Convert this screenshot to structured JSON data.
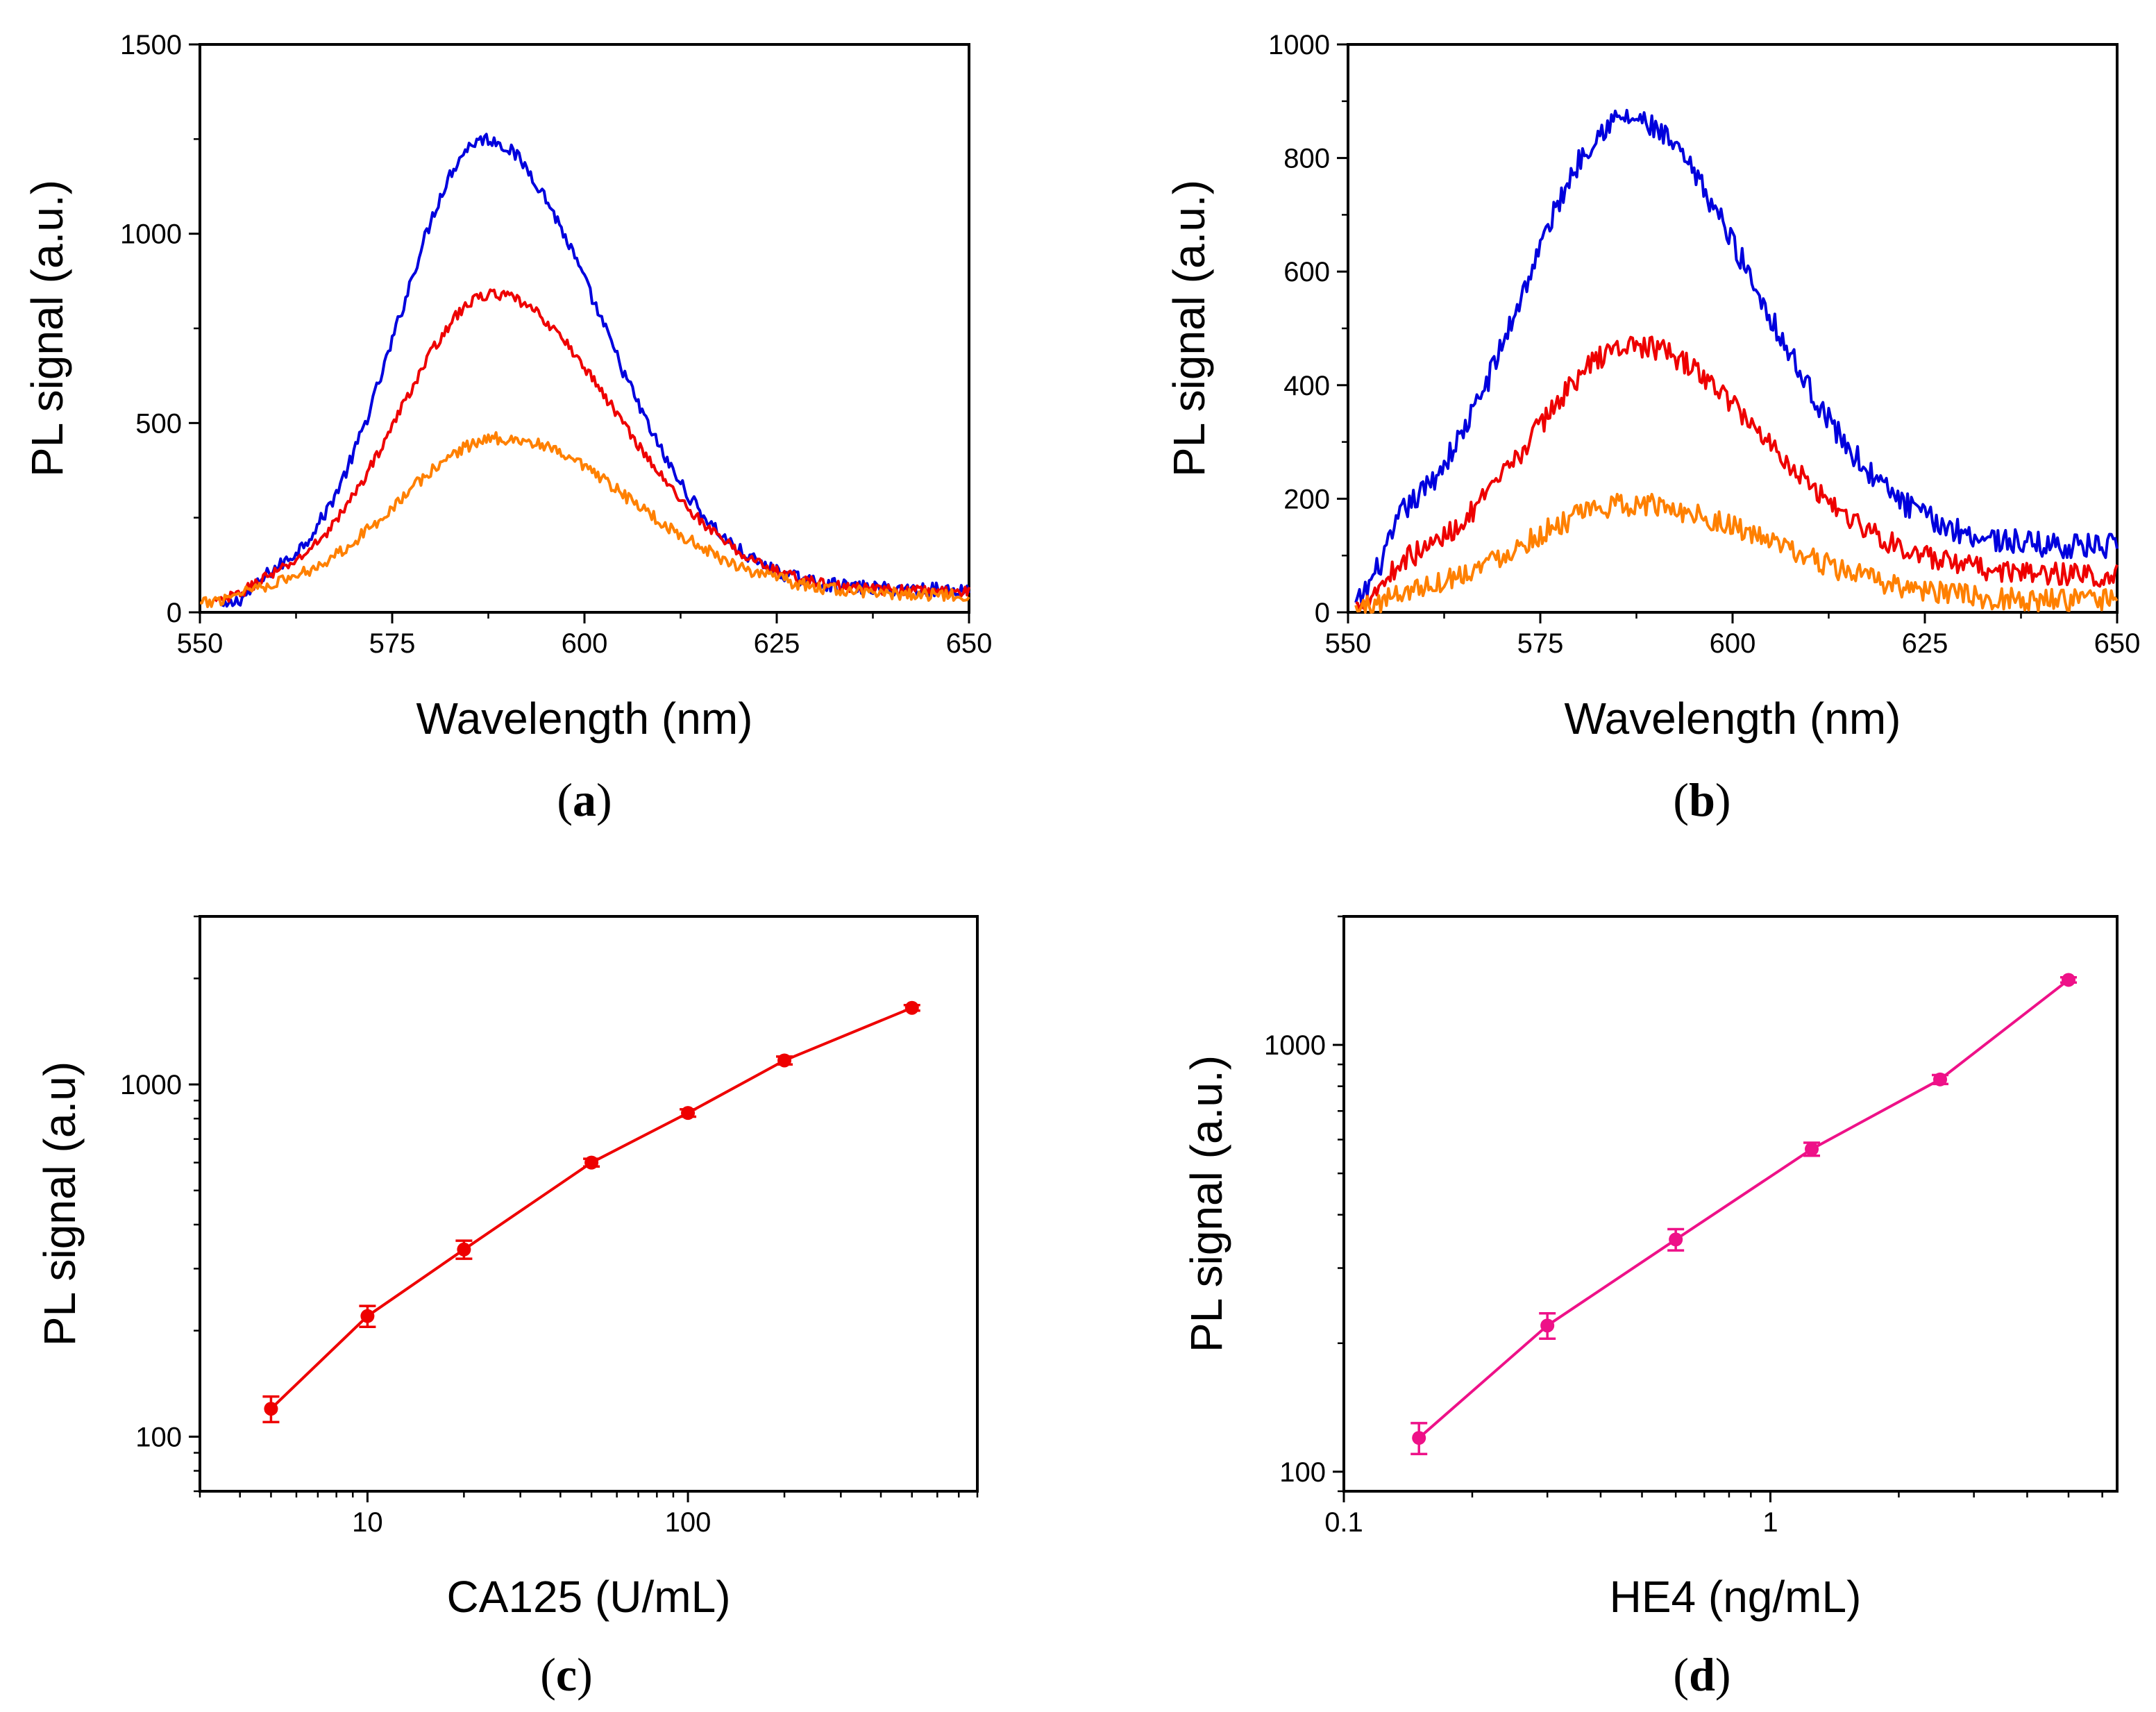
{
  "chart_data": [
    {
      "panel": "a",
      "type": "line",
      "title": "",
      "xlabel": "Wavelength (nm)",
      "ylabel": "PL signal (a.u.)",
      "xlim": [
        550,
        650
      ],
      "ylim": [
        0,
        1500
      ],
      "xticks": [
        550,
        575,
        600,
        625,
        650
      ],
      "yticks": [
        0,
        500,
        1000,
        1500
      ],
      "series": [
        {
          "name": "blue",
          "color": "#0000dd",
          "peak_x": 587,
          "peak_y": 1250,
          "sigma_left": 11,
          "sigma_right": 15,
          "baseline": 60,
          "noise": 18,
          "start": [
            553,
            10
          ],
          "end": [
            650,
            95
          ]
        },
        {
          "name": "red",
          "color": "#ee0000",
          "peak_x": 588,
          "peak_y": 840,
          "sigma_left": 12,
          "sigma_right": 16,
          "baseline": 55,
          "noise": 14,
          "start": [
            552,
            25
          ],
          "end": [
            650,
            80
          ]
        },
        {
          "name": "orange",
          "color": "#ff8000",
          "peak_x": 589,
          "peak_y": 460,
          "sigma_left": 13,
          "sigma_right": 17,
          "baseline": 45,
          "noise": 16,
          "start": [
            550,
            20
          ],
          "end": [
            650,
            70
          ]
        }
      ]
    },
    {
      "panel": "b",
      "type": "line",
      "title": "",
      "xlabel": "Wavelength (nm)",
      "ylabel": "PL signal (a.u.)",
      "xlim": [
        550,
        650
      ],
      "ylim": [
        0,
        1000
      ],
      "xticks": [
        550,
        575,
        600,
        625,
        650
      ],
      "yticks": [
        0,
        200,
        400,
        600,
        800,
        1000
      ],
      "series": [
        {
          "name": "blue",
          "color": "#0000dd",
          "peak_x": 586,
          "peak_y": 870,
          "sigma_left": 13,
          "sigma_right": 17,
          "baseline": 115,
          "noise": 22,
          "start": [
            551,
            10
          ],
          "end": [
            650,
            130
          ]
        },
        {
          "name": "red",
          "color": "#ee0000",
          "peak_x": 587,
          "peak_y": 470,
          "sigma_left": 13,
          "sigma_right": 17,
          "baseline": 65,
          "noise": 20,
          "start": [
            551,
            10
          ],
          "end": [
            650,
            75
          ]
        },
        {
          "name": "orange",
          "color": "#ff8000",
          "peak_x": 587,
          "peak_y": 190,
          "sigma_left": 14,
          "sigma_right": 18,
          "baseline": 20,
          "noise": 20,
          "start": [
            551,
            5
          ],
          "end": [
            650,
            35
          ]
        }
      ]
    },
    {
      "panel": "c",
      "type": "line",
      "title": "",
      "xlabel": "CA125 (U/mL)",
      "ylabel": "PL signal (a.u)",
      "xscale": "log",
      "yscale": "log",
      "xlim": [
        3,
        800
      ],
      "ylim": [
        70,
        3000
      ],
      "xticks": [
        10,
        100
      ],
      "xtick_labels": [
        "10",
        "100"
      ],
      "yticks": [
        100,
        1000
      ],
      "ytick_labels": [
        "100",
        "1000"
      ],
      "series": [
        {
          "name": "CA125",
          "color": "#ee0000",
          "x": [
            5,
            10,
            20,
            50,
            100,
            200,
            500
          ],
          "y": [
            120,
            220,
            340,
            600,
            830,
            1170,
            1650
          ],
          "err": [
            10,
            15,
            20,
            15,
            20,
            30,
            30
          ]
        }
      ]
    },
    {
      "panel": "d",
      "type": "line",
      "title": "",
      "xlabel": "HE4 (ng/mL)",
      "ylabel": "PL signal (a.u.)",
      "xscale": "log",
      "yscale": "log",
      "xlim": [
        0.1,
        6.5
      ],
      "ylim": [
        90,
        2000
      ],
      "xticks": [
        0.1,
        1
      ],
      "xtick_labels": [
        "0.1",
        "1"
      ],
      "yticks": [
        100,
        1000
      ],
      "ytick_labels": [
        "100",
        "1000"
      ],
      "series": [
        {
          "name": "HE4",
          "color": "#ee1188",
          "x": [
            0.15,
            0.3,
            0.6,
            1.25,
            2.5,
            5
          ],
          "y": [
            120,
            220,
            350,
            570,
            830,
            1420
          ],
          "err": [
            10,
            15,
            20,
            20,
            20,
            20
          ]
        }
      ]
    }
  ],
  "panel_labels": {
    "a": {
      "open": "(",
      "letter": "a",
      "close": ")"
    },
    "b": {
      "open": "(",
      "letter": "b",
      "close": ")"
    },
    "c": {
      "open": "(",
      "letter": "c",
      "close": ")"
    },
    "d": {
      "open": "(",
      "letter": "d",
      "close": ")"
    }
  }
}
